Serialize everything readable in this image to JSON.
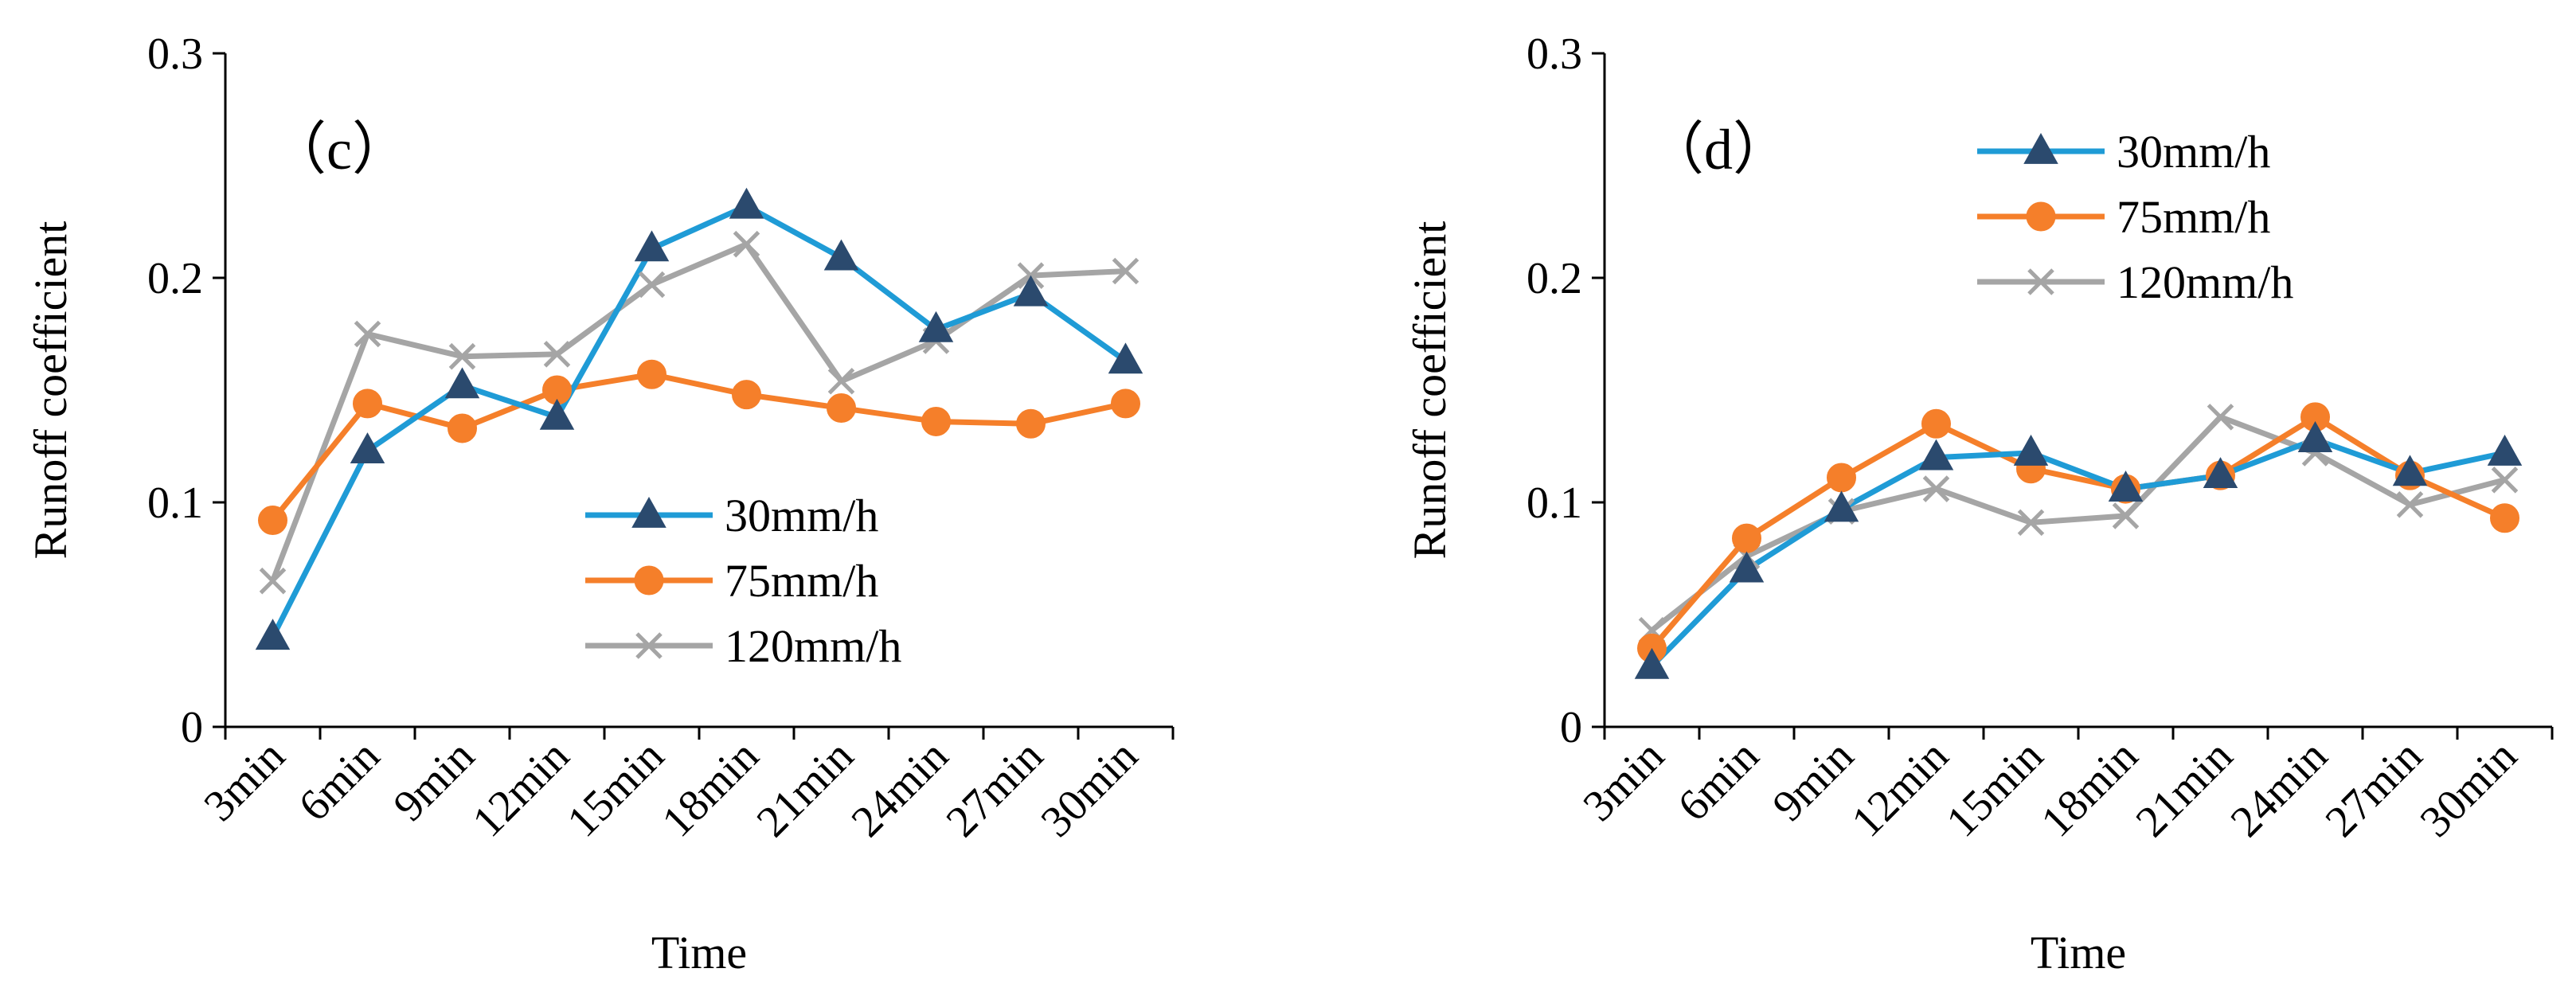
{
  "chart_data": [
    {
      "type": "line",
      "panel_label": "（c）",
      "xlabel": "Time",
      "ylabel": "Runoff coefficient",
      "categories": [
        "3min",
        "6min",
        "9min",
        "12min",
        "15min",
        "18min",
        "21min",
        "24min",
        "27min",
        "30min"
      ],
      "yticks": [
        "0",
        "0.1",
        "0.2",
        "0.3"
      ],
      "ylim": [
        0,
        0.3
      ],
      "legend_position": "center-right",
      "series": [
        {
          "name": "30mm/h",
          "color": "#1f9bd6",
          "marker": "triangle",
          "values": [
            0.04,
            0.123,
            0.152,
            0.138,
            0.213,
            0.232,
            0.209,
            0.177,
            0.193,
            0.163
          ]
        },
        {
          "name": "75mm/h",
          "color": "#f57f2a",
          "marker": "circle",
          "values": [
            0.092,
            0.144,
            0.133,
            0.15,
            0.157,
            0.148,
            0.142,
            0.136,
            0.135,
            0.144
          ]
        },
        {
          "name": "120mm/h",
          "color": "#a5a5a5",
          "marker": "x",
          "values": [
            0.065,
            0.175,
            0.165,
            0.166,
            0.197,
            0.215,
            0.154,
            0.172,
            0.201,
            0.203
          ]
        }
      ]
    },
    {
      "type": "line",
      "panel_label": "（d）",
      "xlabel": "Time",
      "ylabel": "Runoff coefficient",
      "categories": [
        "3min",
        "6min",
        "9min",
        "12min",
        "15min",
        "18min",
        "21min",
        "24min",
        "27min",
        "30min"
      ],
      "yticks": [
        "0",
        "0.1",
        "0.2",
        "0.3"
      ],
      "ylim": [
        0,
        0.3
      ],
      "legend_position": "top-center",
      "series": [
        {
          "name": "30mm/h",
          "color": "#1f9bd6",
          "marker": "triangle",
          "values": [
            0.027,
            0.07,
            0.097,
            0.12,
            0.122,
            0.106,
            0.112,
            0.128,
            0.113,
            0.122
          ]
        },
        {
          "name": "75mm/h",
          "color": "#f57f2a",
          "marker": "circle",
          "values": [
            0.035,
            0.084,
            0.111,
            0.135,
            0.115,
            0.106,
            0.112,
            0.138,
            0.112,
            0.093
          ]
        },
        {
          "name": "120mm/h",
          "color": "#a5a5a5",
          "marker": "x",
          "values": [
            0.043,
            0.076,
            0.096,
            0.106,
            0.091,
            0.094,
            0.138,
            0.122,
            0.099,
            0.11
          ]
        }
      ]
    }
  ]
}
